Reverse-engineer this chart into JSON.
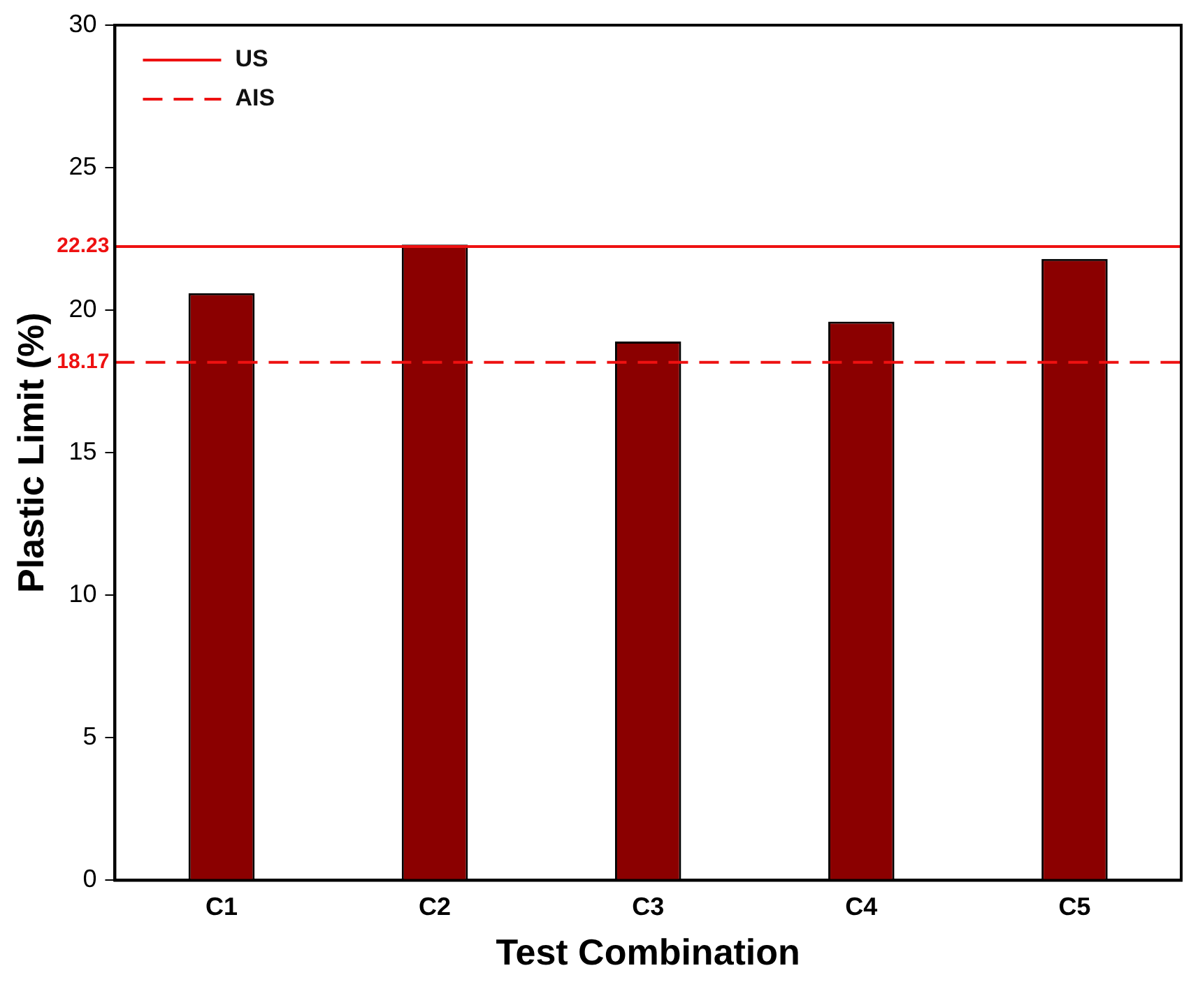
{
  "chart_data": {
    "type": "bar",
    "xlabel": "Test Combination",
    "ylabel": "Plastic Limit (%)",
    "categories": [
      "C1",
      "C2",
      "C3",
      "C4",
      "C5"
    ],
    "values": [
      20.6,
      22.3,
      18.9,
      19.6,
      21.8
    ],
    "color": "#8b0000",
    "ylim": [
      0,
      30
    ],
    "yticks": [
      0,
      5,
      10,
      15,
      20,
      25,
      30
    ],
    "grid": false,
    "legend": "top left",
    "annotations": [
      "22.23",
      "18.17"
    ],
    "ref_lines": [
      {
        "axis": "y",
        "value": 22.23,
        "label": "US",
        "color": "#ee1111",
        "line_style": "solid"
      },
      {
        "axis": "y",
        "value": 18.17,
        "label": "AIS",
        "color": "#ee1111",
        "line_style": "dashed"
      }
    ]
  }
}
